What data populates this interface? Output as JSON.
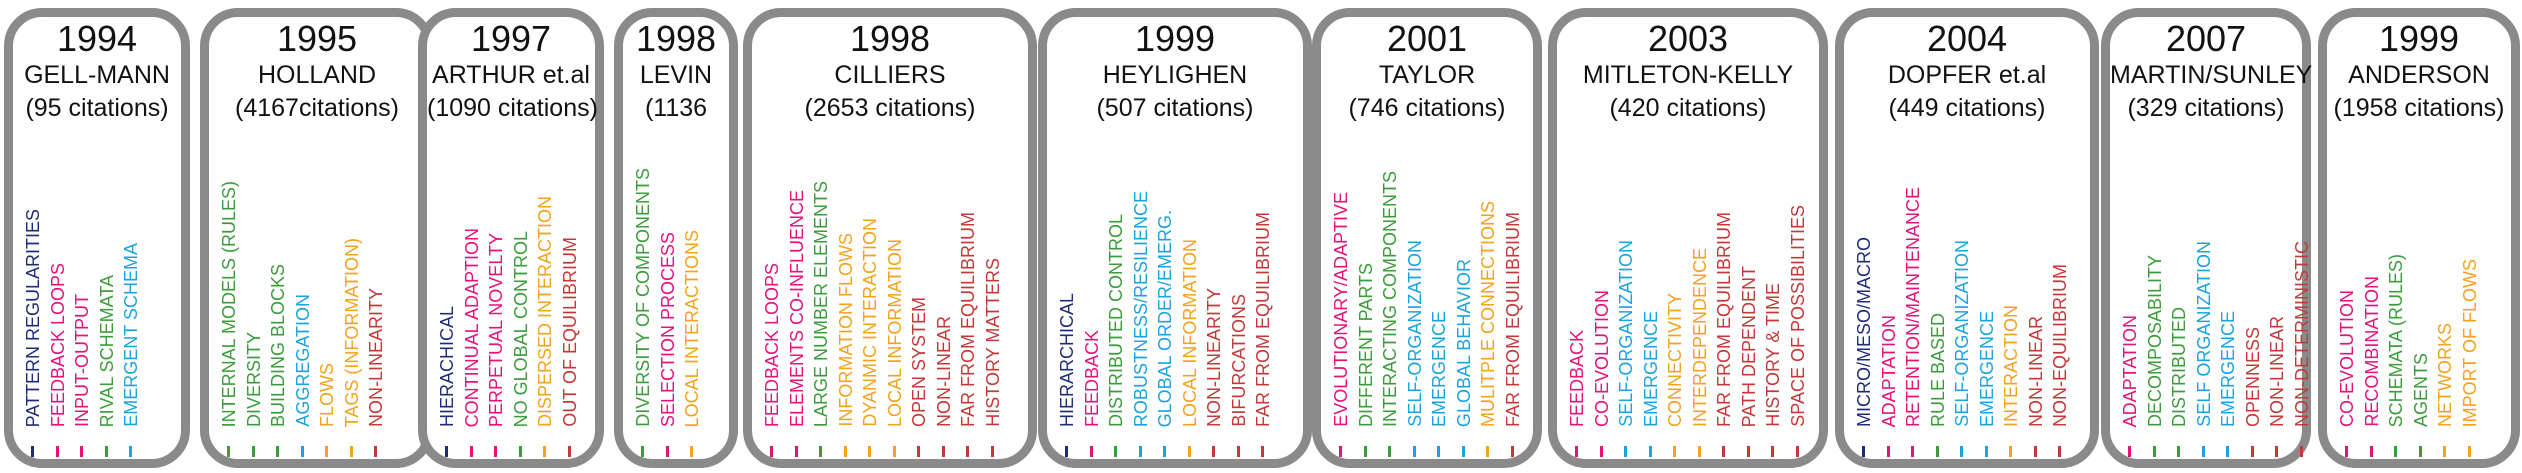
{
  "colors": {
    "frame": "#8a8a8a",
    "navy": "#1c2c78",
    "magenta": "#e4127a",
    "green": "#3a9c3a",
    "blue": "#1aa3e0",
    "orange": "#f4a21c",
    "red": "#c43838"
  },
  "boxes": [
    {
      "year": "1994",
      "author": "GELL-MANN",
      "citations": "(95 citations)",
      "items": [
        {
          "label": "PATTERN REGULARITIES",
          "color": "navy"
        },
        {
          "label": "FEEDBACK LOOPS",
          "color": "magenta"
        },
        {
          "label": "INPUT-OUTPUT",
          "color": "magenta"
        },
        {
          "label": "RIVAL SCHEMATA",
          "color": "green"
        },
        {
          "label": "EMERGENT SCHEMA",
          "color": "blue"
        }
      ]
    },
    {
      "year": "1995",
      "author": "HOLLAND",
      "citations": "(4167citations)",
      "items": [
        {
          "label": "INTERNAL MODELS (RULES)",
          "color": "green"
        },
        {
          "label": "DIVERSITY",
          "color": "green"
        },
        {
          "label": "BUILDING BLOCKS",
          "color": "green"
        },
        {
          "label": "AGGREGATION",
          "color": "blue"
        },
        {
          "label": "FLOWS",
          "color": "orange"
        },
        {
          "label": "TAGS (INFORMATION)",
          "color": "orange"
        },
        {
          "label": "NON-LINEARITY",
          "color": "red"
        }
      ]
    },
    {
      "year": "1997",
      "author": "ARTHUR et.al",
      "citations": "(1090 citations)",
      "items": [
        {
          "label": "HIERACHICAL",
          "color": "navy"
        },
        {
          "label": "CONTINUAL ADAPTION",
          "color": "magenta"
        },
        {
          "label": "PERPETUAL NOVELTY",
          "color": "magenta"
        },
        {
          "label": "NO GLOBAL CONTROL",
          "color": "green"
        },
        {
          "label": "DISPERSED INTERACTION",
          "color": "orange"
        },
        {
          "label": "OUT OF EQUILIBRIUM",
          "color": "red"
        }
      ]
    },
    {
      "year": "1998",
      "author": "LEVIN",
      "citations": "(1136",
      "items": [
        {
          "label": "DIVERSITY OF COMPONENTS",
          "color": "green"
        },
        {
          "label": "SELECTION PROCESS",
          "color": "magenta"
        },
        {
          "label": "LOCAL INTERACTIONS",
          "color": "orange"
        }
      ]
    },
    {
      "year": "1998",
      "author": "CILLIERS",
      "citations": "(2653 citations)",
      "items": [
        {
          "label": "FEEDBACK LOOPS",
          "color": "magenta"
        },
        {
          "label": "ELEMENTS CO-INFLUENCE",
          "color": "magenta"
        },
        {
          "label": "LARGE NUMBER ELEMENTS",
          "color": "green"
        },
        {
          "label": "INFORMATION FLOWS",
          "color": "orange"
        },
        {
          "label": "DYANMIC INTERACTION",
          "color": "orange"
        },
        {
          "label": "LOCAL INFORMATION",
          "color": "orange"
        },
        {
          "label": "OPEN SYSTEM",
          "color": "red"
        },
        {
          "label": "NON-LINEAR",
          "color": "red"
        },
        {
          "label": "FAR FROM EQUILIBRIUM",
          "color": "red"
        },
        {
          "label": "HISTORY MATTERS",
          "color": "red"
        }
      ]
    },
    {
      "year": "1999",
      "author": "HEYLIGHEN",
      "citations": "(507 citations)",
      "items": [
        {
          "label": "HIERARCHICAL",
          "color": "navy"
        },
        {
          "label": "FEEDBACK",
          "color": "magenta"
        },
        {
          "label": "DISTRIBUTED CONTROL",
          "color": "green"
        },
        {
          "label": "ROBUSTNESS/RESILIENCE",
          "color": "blue"
        },
        {
          "label": "GLOBAL ORDER/EMERG.",
          "color": "blue"
        },
        {
          "label": "LOCAL INFORMATION",
          "color": "orange"
        },
        {
          "label": "NON-LINEARITY",
          "color": "red"
        },
        {
          "label": "BIFURCATIONS",
          "color": "red"
        },
        {
          "label": "FAR FROM EQUILIBRIUM",
          "color": "red"
        }
      ]
    },
    {
      "year": "2001",
      "author": "TAYLOR",
      "citations": "(746 citations)",
      "items": [
        {
          "label": "EVOLUTIONARY/ADAPTIVE",
          "color": "magenta"
        },
        {
          "label": "DIFFERENT PARTS",
          "color": "green"
        },
        {
          "label": "INTERACTING COMPONENTS",
          "color": "green"
        },
        {
          "label": "SELF-ORGANIZATION",
          "color": "blue"
        },
        {
          "label": "EMERGENCE",
          "color": "blue"
        },
        {
          "label": "GLOBAL BEHAVIOR",
          "color": "blue"
        },
        {
          "label": "MULITPLE CONNECTIONS",
          "color": "orange"
        },
        {
          "label": "FAR FROM EQUILIBRIUM",
          "color": "red"
        }
      ]
    },
    {
      "year": "2003",
      "author": "MITLETON-KELLY",
      "citations": "(420 citations)",
      "items": [
        {
          "label": "FEEDBACK",
          "color": "magenta"
        },
        {
          "label": "CO-EVOLUTION",
          "color": "magenta"
        },
        {
          "label": "SELF-ORGANIZATION",
          "color": "blue"
        },
        {
          "label": "EMERGENCE",
          "color": "blue"
        },
        {
          "label": "CONNECTIVITY",
          "color": "orange"
        },
        {
          "label": "INTERDEPENDENCE",
          "color": "orange"
        },
        {
          "label": "FAR FROM EQUILIBRIUM",
          "color": "red"
        },
        {
          "label": "PATH DEPENDENT",
          "color": "red"
        },
        {
          "label": "HISTORY & TIME",
          "color": "red"
        },
        {
          "label": "SPACE OF POSSIBILITIES",
          "color": "red"
        }
      ]
    },
    {
      "year": "2004",
      "author": "DOPFER et.al",
      "citations": "(449 citations)",
      "items": [
        {
          "label": "MICRO/MESO/MACRO",
          "color": "navy"
        },
        {
          "label": "ADAPTATION",
          "color": "magenta"
        },
        {
          "label": "RETENTION/MAINTENANCE",
          "color": "magenta"
        },
        {
          "label": "RULE BASED",
          "color": "green"
        },
        {
          "label": "SELF-ORGANIZATION",
          "color": "blue"
        },
        {
          "label": "EMERGENCE",
          "color": "blue"
        },
        {
          "label": "INTERACTION",
          "color": "orange"
        },
        {
          "label": "NON-LINEAR",
          "color": "red"
        },
        {
          "label": "NON-EQUILIBRIUM",
          "color": "red"
        }
      ]
    },
    {
      "year": "2007",
      "author": "MARTIN/SUNLEY",
      "citations": "(329 citations)",
      "items": [
        {
          "label": "ADAPTATION",
          "color": "magenta"
        },
        {
          "label": "DECOMPOSABILITY",
          "color": "green"
        },
        {
          "label": "DISTRIBUTED",
          "color": "green"
        },
        {
          "label": "SELF ORGANIZATION",
          "color": "blue"
        },
        {
          "label": "EMERGENCE",
          "color": "blue"
        },
        {
          "label": "OPENNESS",
          "color": "red"
        },
        {
          "label": "NON-LINEAR",
          "color": "red"
        },
        {
          "label": "NON-DETERMINISTIC",
          "color": "red"
        }
      ]
    },
    {
      "year": "1999",
      "author": "ANDERSON",
      "citations": "(1958 citations)",
      "items": [
        {
          "label": "CO-EVOLUTION",
          "color": "magenta"
        },
        {
          "label": "RECOMBINATION",
          "color": "magenta"
        },
        {
          "label": "SCHEMATA (RULES)",
          "color": "green"
        },
        {
          "label": "AGENTS",
          "color": "green"
        },
        {
          "label": "NETWORKS",
          "color": "orange"
        },
        {
          "label": "IMPORT OF FLOWS",
          "color": "orange"
        }
      ]
    }
  ]
}
